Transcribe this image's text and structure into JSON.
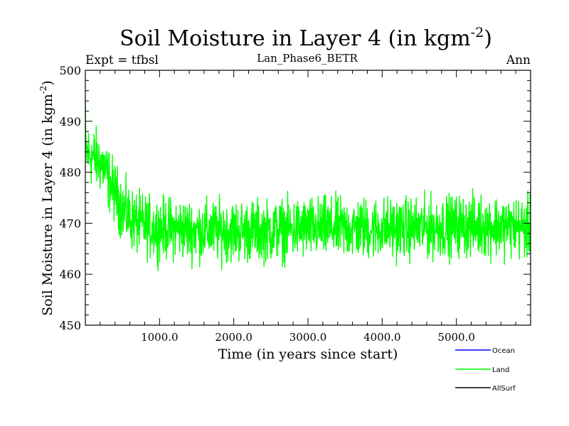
{
  "chart_data": {
    "type": "line",
    "title": "Soil Moisture in Layer 4 (in kgm",
    "title_sup": "-2",
    "title_close": ")",
    "subtitle": "Lan_Phase6_BETR",
    "left_label": "Expt = tfbsl",
    "right_label": "Ann",
    "xlabel": "Time (in years since start)",
    "ylabel": "Soil Moisture in Layer 4 (in kgm",
    "ylabel_sup": "-2",
    "ylabel_close": ")",
    "xlim": [
      0,
      6000
    ],
    "ylim": [
      450,
      500
    ],
    "xticks": [
      1000,
      2000,
      3000,
      4000,
      5000
    ],
    "xtick_labels": [
      "1000.0",
      "2000.0",
      "3000.0",
      "4000.0",
      "5000.0"
    ],
    "yticks": [
      450,
      460,
      470,
      480,
      490,
      500
    ],
    "ytick_labels": [
      "450",
      "460",
      "470",
      "480",
      "490",
      "500"
    ],
    "series": [
      {
        "name": "Land",
        "color": "#00ff00",
        "x": [
          0,
          50,
          100,
          150,
          200,
          250,
          300,
          400,
          500,
          600,
          700,
          800,
          900,
          1000,
          1200,
          1500,
          2000,
          2500,
          3000,
          3500,
          4000,
          4500,
          5000,
          5500,
          6000
        ],
        "values": [
          484,
          483.5,
          483,
          482.5,
          482,
          481,
          479,
          476,
          473,
          471,
          470,
          469.5,
          469,
          469,
          469,
          468.5,
          468.5,
          468.5,
          469,
          469,
          469,
          469,
          469.5,
          469.5,
          469
        ],
        "noise_amplitude": 4.5
      }
    ],
    "legend": {
      "placement": "bottom-right",
      "entries": [
        {
          "label": "Ocean",
          "color": "#0000ff"
        },
        {
          "label": "Land",
          "color": "#00ff00"
        },
        {
          "label": "AllSurf",
          "color": "#000000"
        }
      ]
    }
  }
}
